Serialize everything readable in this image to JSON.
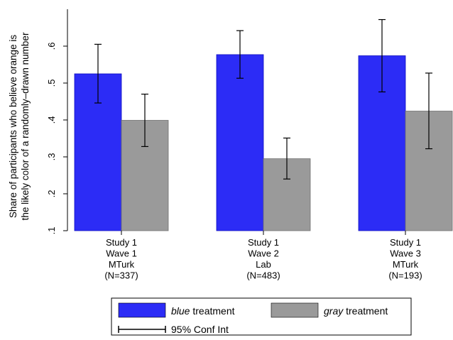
{
  "chart_data": {
    "type": "bar",
    "ylabel_lines": [
      "Share of participants who believe orange is",
      "the likely color of a randomly–drawn number"
    ],
    "ylim": [
      0.1,
      0.7
    ],
    "yticks": [
      {
        "value": 0.1,
        "label": ".1"
      },
      {
        "value": 0.2,
        "label": ".2"
      },
      {
        "value": 0.3,
        "label": ".3"
      },
      {
        "value": 0.4,
        "label": ".4"
      },
      {
        "value": 0.5,
        "label": ".5"
      },
      {
        "value": 0.6,
        "label": ".6"
      }
    ],
    "grid": false,
    "categories": [
      [
        "Study 1",
        "Wave 1",
        "MTurk",
        "(N=337)"
      ],
      [
        "Study 1",
        "Wave 2",
        "Lab",
        "(N=483)"
      ],
      [
        "Study 1",
        "Wave 3",
        "MTurk",
        "(N=193)"
      ]
    ],
    "series": [
      {
        "name": "blue treatment",
        "name_italic": "blue",
        "name_rest": " treatment",
        "color": "#2c2cf6",
        "values": [
          0.525,
          0.577,
          0.574
        ],
        "ci_low": [
          0.446,
          0.513,
          0.476
        ],
        "ci_high": [
          0.605,
          0.642,
          0.672
        ]
      },
      {
        "name": "gray treatment",
        "name_italic": "gray",
        "name_rest": " treatment",
        "color": "#9a9a9a",
        "values": [
          0.399,
          0.295,
          0.424
        ],
        "ci_low": [
          0.328,
          0.24,
          0.322
        ],
        "ci_high": [
          0.47,
          0.351,
          0.527
        ]
      }
    ],
    "legend": {
      "position": "bottom",
      "ci_label": "95% Conf Int"
    }
  }
}
